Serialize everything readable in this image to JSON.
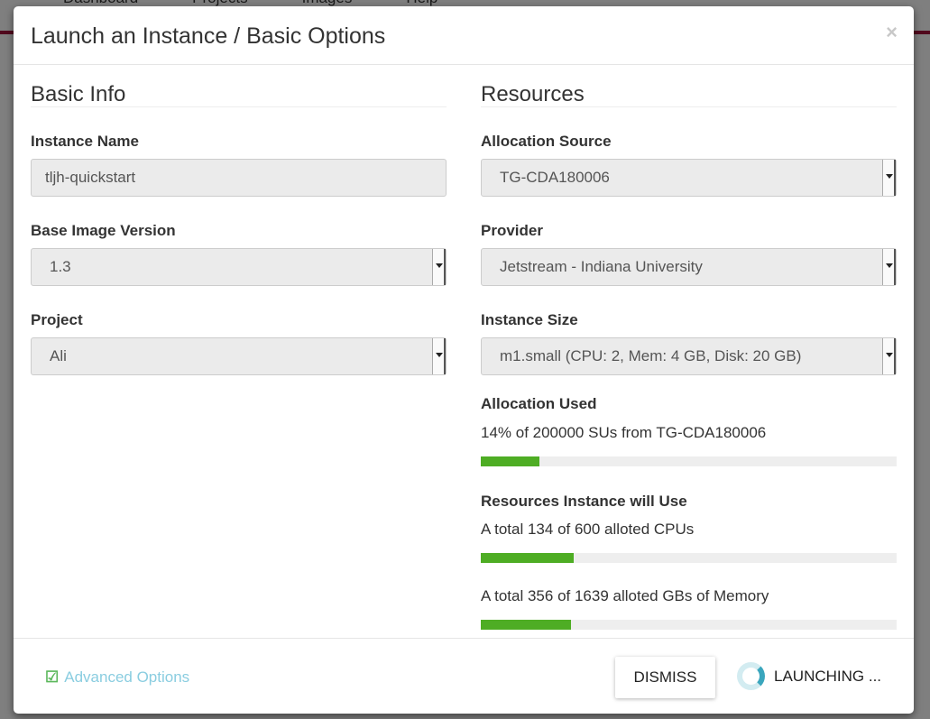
{
  "background": {
    "nav": [
      "Dashboard",
      "Projects",
      "Images",
      "Help"
    ]
  },
  "modal": {
    "title": "Launch an Instance / Basic Options",
    "close": "×"
  },
  "basic_info": {
    "heading": "Basic Info",
    "instance_name": {
      "label": "Instance Name",
      "value": "tljh-quickstart"
    },
    "base_image_version": {
      "label": "Base Image Version",
      "value": "1.3"
    },
    "project": {
      "label": "Project",
      "value": "Ali"
    }
  },
  "resources": {
    "heading": "Resources",
    "allocation_source": {
      "label": "Allocation Source",
      "value": "TG-CDA180006"
    },
    "provider": {
      "label": "Provider",
      "value": "Jetstream - Indiana University"
    },
    "instance_size": {
      "label": "Instance Size",
      "value": "m1.small (CPU: 2, Mem: 4 GB, Disk: 20 GB)"
    },
    "allocation_used": {
      "label": "Allocation Used",
      "text": "14% of 200000 SUs from TG-CDA180006",
      "percent": 14
    },
    "will_use": {
      "label": "Resources Instance will Use",
      "cpus": {
        "text": "A total 134 of 600 alloted CPUs",
        "percent": 22.3
      },
      "memory": {
        "text": "A total 356 of 1639 alloted GBs of Memory",
        "percent": 21.7
      }
    }
  },
  "footer": {
    "advanced": "Advanced Options",
    "dismiss": "DISMISS",
    "launching": "LAUNCHING ..."
  },
  "colors": {
    "bar": "#4ead24",
    "link": "#8acde0",
    "check": "#5cb85c",
    "spinner": "#3aa6bd"
  }
}
